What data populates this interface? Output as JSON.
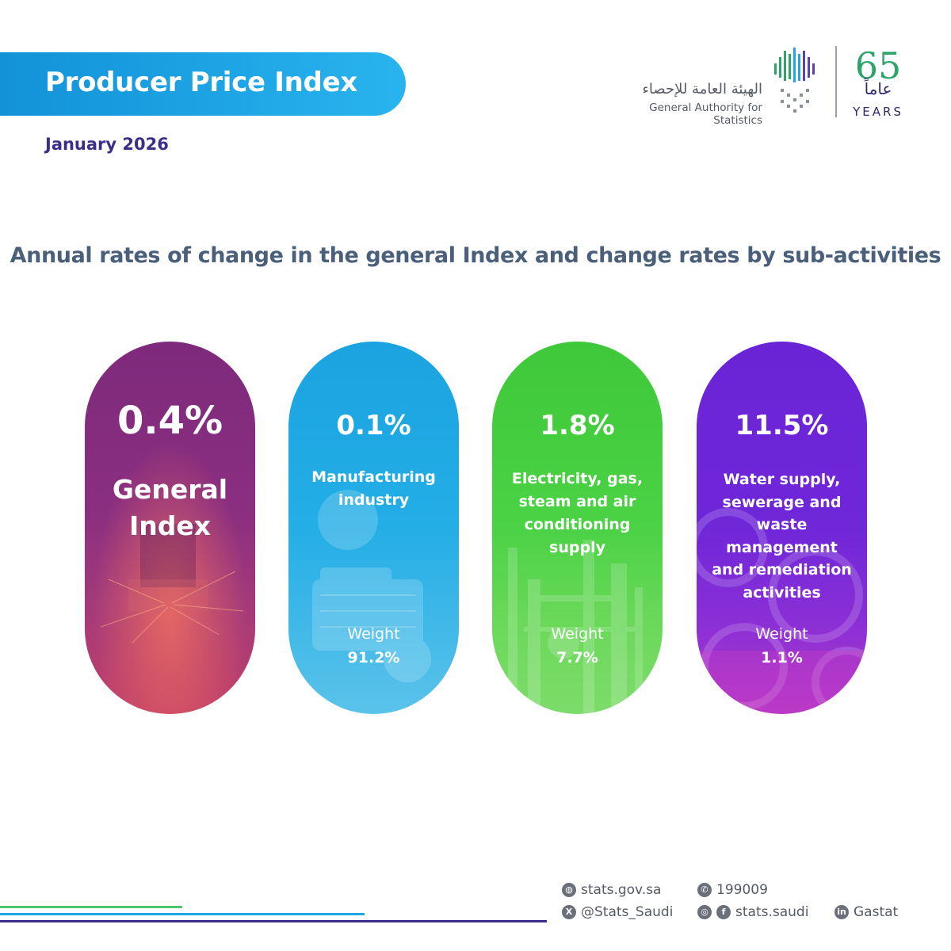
{
  "header": {
    "title": "Producer Price Index",
    "date": "January 2026"
  },
  "logo": {
    "arabic_name": "الهيئة العامة للإحصاء",
    "english_name": "General Authority for Statistics",
    "badge_number": "65",
    "badge_arabic": "عاماً",
    "badge_english": "YEARS"
  },
  "headline": "Annual rates of change in the general Index and change rates by sub-activities",
  "cards": [
    {
      "value": "0.4%",
      "label_lines": [
        "General",
        "Index"
      ],
      "weight_label": "",
      "weight_value": ""
    },
    {
      "value": "0.1%",
      "label_lines": [
        "Manufacturing",
        "industry"
      ],
      "weight_label": "Weight",
      "weight_value": "91.2%"
    },
    {
      "value": "1.8%",
      "label_lines": [
        "Electricity, gas,",
        "steam and air",
        "conditioning supply"
      ],
      "weight_label": "Weight",
      "weight_value": "7.7%"
    },
    {
      "value": "11.5%",
      "label_lines": [
        "Water supply,",
        "sewerage and",
        "waste management",
        "and remediation",
        "activities"
      ],
      "weight_label": "Weight",
      "weight_value": "1.1%"
    }
  ],
  "footer": {
    "website": "stats.gov.sa",
    "phone": "199009",
    "twitter": "@Stats_Saudi",
    "social": "stats.saudi",
    "linkedin": "Gastat"
  },
  "colors": {
    "banner": "#1fa6e6",
    "card_general": "#7e2a7c",
    "card_manufacturing": "#1aa3e0",
    "card_electricity": "#3fc83a",
    "card_water": "#6a24d6"
  }
}
